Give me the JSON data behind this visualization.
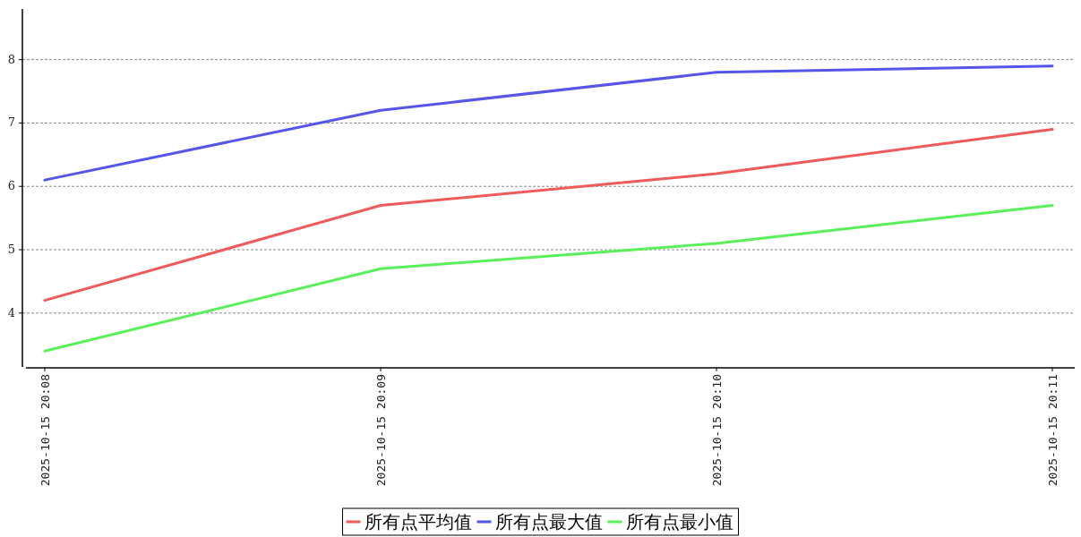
{
  "chart_data": {
    "type": "line",
    "categories": [
      "2025-10-15 20:08",
      "2025-10-15 20:09",
      "2025-10-15 20:10",
      "2025-10-15 20:11"
    ],
    "series": [
      {
        "name": "所有点平均值",
        "color": "#f05a5a",
        "values": [
          4.2,
          5.7,
          6.2,
          6.9
        ]
      },
      {
        "name": "所有点最大值",
        "color": "#5555e8",
        "values": [
          6.1,
          7.2,
          7.8,
          7.9
        ]
      },
      {
        "name": "所有点最小值",
        "color": "#5af05a",
        "values": [
          3.4,
          4.7,
          5.1,
          5.7
        ]
      }
    ],
    "ylim": [
      3.15,
      8.8
    ],
    "yticks": [
      4,
      5,
      6,
      7,
      8
    ],
    "grid": "y",
    "legend": "bottom",
    "marker": "none",
    "line_style": "solid"
  }
}
